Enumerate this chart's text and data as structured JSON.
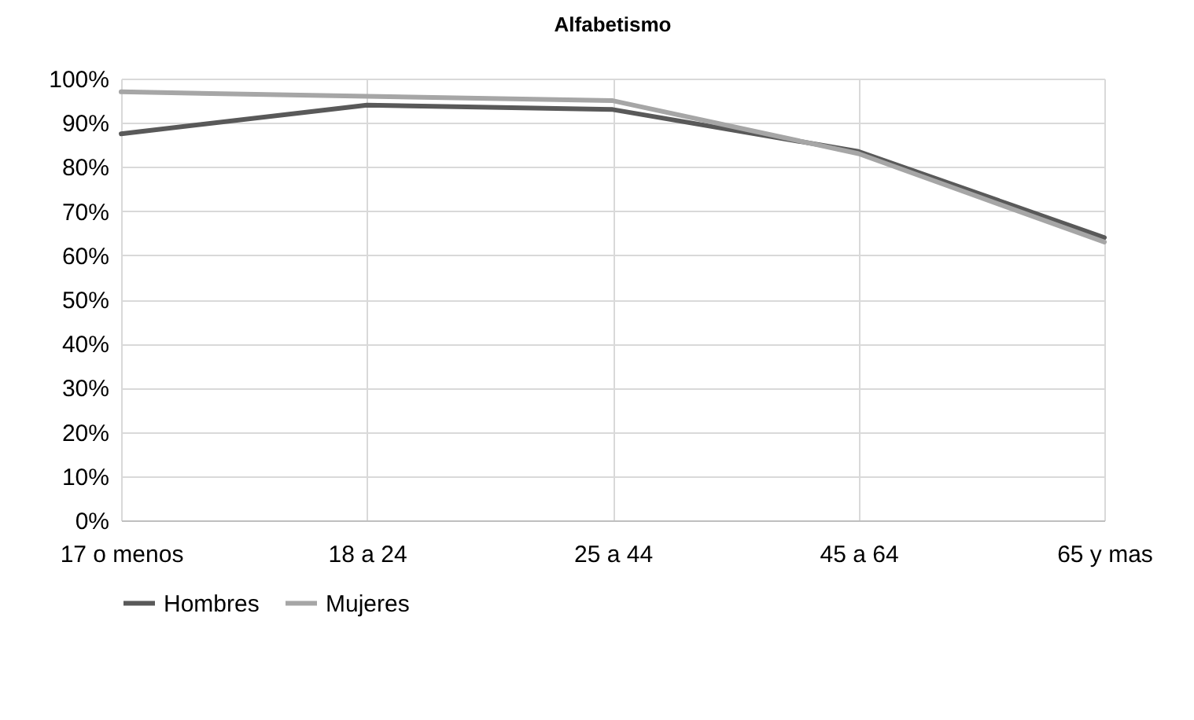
{
  "chart_data": {
    "type": "line",
    "title": "Alfabetismo",
    "categories": [
      "17 o menos",
      "18 a 24",
      "25 a 44",
      "45 a 64",
      "65 y mas"
    ],
    "series": [
      {
        "name": "Hombres",
        "color": "#595959",
        "values": [
          87.5,
          94,
          93,
          83.5,
          64
        ]
      },
      {
        "name": "Mujeres",
        "color": "#a6a6a6",
        "values": [
          97,
          96,
          95,
          83,
          63
        ]
      }
    ],
    "ylim": [
      0,
      100
    ],
    "yticks": [
      {
        "value": 0,
        "label": "0%"
      },
      {
        "value": 10,
        "label": "10%"
      },
      {
        "value": 20,
        "label": "20%"
      },
      {
        "value": 30,
        "label": "30%"
      },
      {
        "value": 40,
        "label": "40%"
      },
      {
        "value": 50,
        "label": "50%"
      },
      {
        "value": 60,
        "label": "60%"
      },
      {
        "value": 70,
        "label": "70%"
      },
      {
        "value": 80,
        "label": "80%"
      },
      {
        "value": 90,
        "label": "90%"
      },
      {
        "value": 100,
        "label": "100%"
      }
    ],
    "grid": true,
    "legend": "bottom"
  }
}
